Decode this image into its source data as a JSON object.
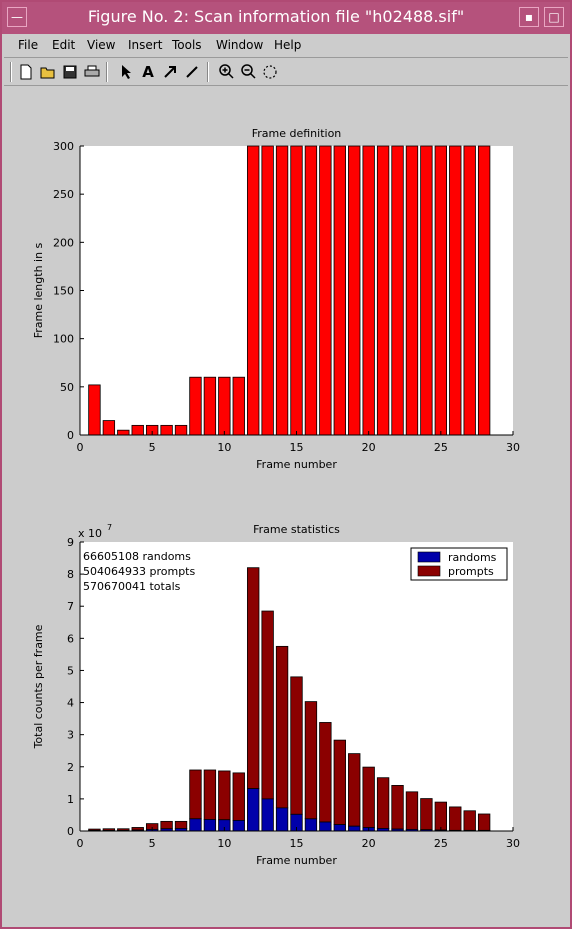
{
  "window": {
    "title": "Figure No. 2: Scan information file \"h02488.sif\"",
    "menu": [
      "File",
      "Edit",
      "View",
      "Insert",
      "Tools",
      "Window",
      "Help"
    ],
    "tools": [
      "new-file-icon",
      "open-folder-icon",
      "save-icon",
      "print-icon",
      "arrow-select-icon",
      "text-insert-icon",
      "arrow-insert-icon",
      "line-insert-icon",
      "zoom-in-icon",
      "zoom-out-icon",
      "rotate-icon"
    ]
  },
  "colors": {
    "frame_bar": "#ff0000",
    "randoms": "#0000aa",
    "prompts": "#8b0000",
    "titlebar": "#b5527c"
  },
  "chart_data": [
    {
      "type": "bar",
      "title": "Frame definition",
      "xlabel": "Frame number",
      "ylabel": "Frame length in s",
      "xlim": [
        0,
        30
      ],
      "ylim": [
        0,
        300
      ],
      "xticks": [
        0,
        5,
        10,
        15,
        20,
        25,
        30
      ],
      "yticks": [
        0,
        50,
        100,
        150,
        200,
        250,
        300
      ],
      "x": [
        1,
        2,
        3,
        4,
        5,
        6,
        7,
        8,
        9,
        10,
        11,
        12,
        13,
        14,
        15,
        16,
        17,
        18,
        19,
        20,
        21,
        22,
        23,
        24,
        25,
        26,
        27,
        28
      ],
      "values": [
        52,
        15,
        5,
        10,
        10,
        10,
        10,
        60,
        60,
        60,
        60,
        300,
        300,
        300,
        300,
        300,
        300,
        300,
        300,
        300,
        300,
        300,
        300,
        300,
        300,
        300,
        300,
        300
      ]
    },
    {
      "type": "bar",
      "title": "Frame statistics",
      "xlabel": "Frame number",
      "ylabel": "Total counts per frame",
      "y_exponent": "x 10",
      "y_exponent_power": "7",
      "xlim": [
        0,
        30
      ],
      "ylim": [
        0,
        9
      ],
      "xticks": [
        0,
        5,
        10,
        15,
        20,
        25,
        30
      ],
      "yticks": [
        0,
        1,
        2,
        3,
        4,
        5,
        6,
        7,
        8,
        9
      ],
      "annotations": [
        "66605108 randoms",
        "504064933 prompts",
        "570670041 totals"
      ],
      "legend": "top-right",
      "x": [
        1,
        2,
        3,
        4,
        5,
        6,
        7,
        8,
        9,
        10,
        11,
        12,
        13,
        14,
        15,
        16,
        17,
        18,
        19,
        20,
        21,
        22,
        23,
        24,
        25,
        26,
        27,
        28
      ],
      "series": [
        {
          "name": "randoms",
          "values": [
            0.02,
            0.02,
            0.02,
            0.03,
            0.05,
            0.07,
            0.08,
            0.38,
            0.36,
            0.35,
            0.33,
            1.32,
            1.0,
            0.72,
            0.52,
            0.38,
            0.28,
            0.2,
            0.15,
            0.11,
            0.08,
            0.06,
            0.05,
            0.04,
            0.03,
            0.02,
            0.02,
            0.02
          ]
        },
        {
          "name": "prompts",
          "values": [
            0.04,
            0.05,
            0.05,
            0.08,
            0.18,
            0.23,
            0.22,
            1.52,
            1.54,
            1.52,
            1.48,
            6.88,
            5.85,
            5.03,
            4.28,
            3.65,
            3.1,
            2.63,
            2.26,
            1.88,
            1.58,
            1.36,
            1.17,
            0.97,
            0.87,
            0.73,
            0.61,
            0.51
          ]
        }
      ]
    }
  ]
}
